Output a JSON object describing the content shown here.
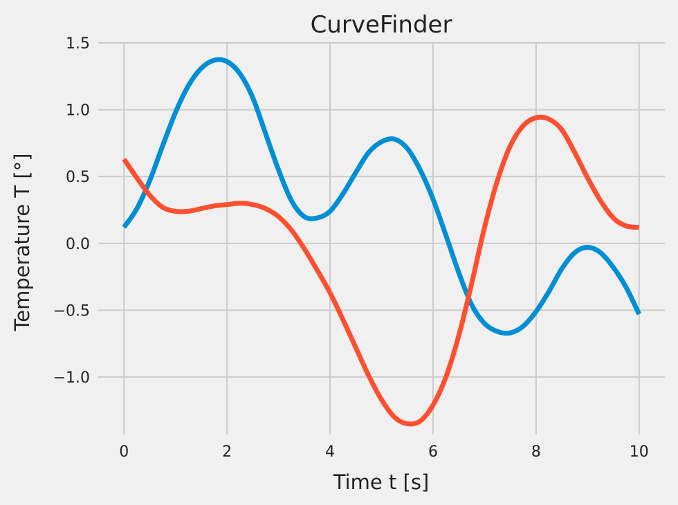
{
  "chart_data": {
    "type": "line",
    "title": "CurveFinder",
    "xlabel": "Time t [s]",
    "ylabel": "Temperature T [°]",
    "xlim": [
      -0.5,
      10.5
    ],
    "ylim": [
      -1.43,
      1.5
    ],
    "xticks": [
      0,
      2,
      4,
      6,
      8,
      10
    ],
    "xtick_labels": [
      "0",
      "2",
      "4",
      "6",
      "8",
      "10"
    ],
    "yticks": [
      -1.0,
      -0.5,
      0.0,
      0.5,
      1.0,
      1.5
    ],
    "ytick_labels": [
      "−1.0",
      "−0.5",
      "0.0",
      "0.5",
      "1.0",
      "1.5"
    ],
    "grid": true,
    "series": [
      {
        "color": "#008fd5",
        "x": [
          0,
          0.25,
          0.5,
          0.75,
          1.0,
          1.25,
          1.5,
          1.75,
          2.0,
          2.25,
          2.5,
          2.75,
          3.0,
          3.25,
          3.5,
          3.75,
          4.0,
          4.25,
          4.5,
          4.75,
          5.0,
          5.25,
          5.5,
          5.75,
          6.0,
          6.25,
          6.5,
          6.75,
          7.0,
          7.25,
          7.5,
          7.75,
          8.0,
          8.25,
          8.5,
          8.75,
          9.0,
          9.25,
          9.5,
          9.75,
          10.0
        ],
        "y": [
          0.12,
          0.26,
          0.47,
          0.73,
          0.98,
          1.18,
          1.31,
          1.37,
          1.36,
          1.27,
          1.09,
          0.82,
          0.55,
          0.32,
          0.2,
          0.19,
          0.24,
          0.37,
          0.53,
          0.68,
          0.76,
          0.78,
          0.71,
          0.55,
          0.33,
          0.06,
          -0.22,
          -0.46,
          -0.6,
          -0.66,
          -0.67,
          -0.62,
          -0.51,
          -0.36,
          -0.19,
          -0.07,
          -0.03,
          -0.07,
          -0.18,
          -0.33,
          -0.53
        ]
      },
      {
        "color": "#fc4f30",
        "x": [
          0,
          0.25,
          0.5,
          0.75,
          1.0,
          1.25,
          1.5,
          1.75,
          2.0,
          2.25,
          2.5,
          2.75,
          3.0,
          3.25,
          3.5,
          3.75,
          4.0,
          4.25,
          4.5,
          4.75,
          5.0,
          5.25,
          5.5,
          5.75,
          6.0,
          6.25,
          6.5,
          6.75,
          7.0,
          7.25,
          7.5,
          7.75,
          8.0,
          8.25,
          8.5,
          8.75,
          9.0,
          9.25,
          9.5,
          9.75,
          10.0
        ],
        "y": [
          0.63,
          0.49,
          0.36,
          0.27,
          0.24,
          0.24,
          0.26,
          0.28,
          0.29,
          0.3,
          0.29,
          0.26,
          0.2,
          0.1,
          -0.04,
          -0.2,
          -0.37,
          -0.57,
          -0.78,
          -0.99,
          -1.17,
          -1.3,
          -1.35,
          -1.33,
          -1.21,
          -1.0,
          -0.69,
          -0.3,
          0.12,
          0.47,
          0.73,
          0.88,
          0.94,
          0.93,
          0.85,
          0.68,
          0.49,
          0.32,
          0.19,
          0.13,
          0.12
        ]
      }
    ]
  }
}
